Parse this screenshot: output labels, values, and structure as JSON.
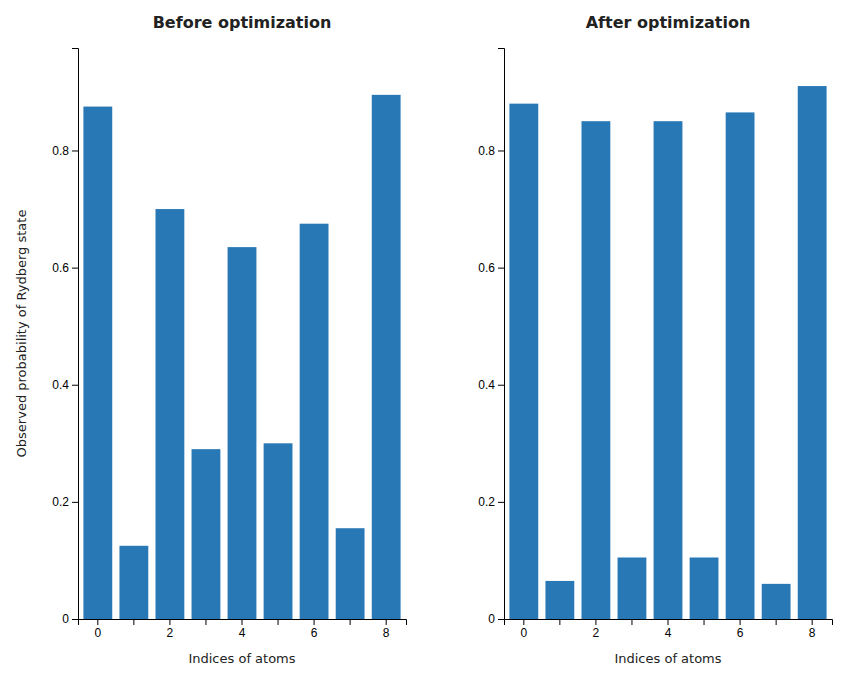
{
  "chart_data": [
    {
      "type": "bar",
      "title": "Before optimization",
      "xlabel": "Indices of atoms",
      "ylabel": "Observed probability of Rydberg state",
      "categories": [
        "0",
        null,
        "2",
        null,
        "4",
        null,
        "6",
        null,
        "8"
      ],
      "values": [
        0.875,
        0.125,
        0.7,
        0.29,
        0.635,
        0.3,
        0.675,
        0.155,
        0.895
      ],
      "color": "#2878b5",
      "ylim": [
        0,
        0.975
      ],
      "yticks": [
        0,
        0.2,
        0.4,
        0.6,
        0.8
      ],
      "grid": false
    },
    {
      "type": "bar",
      "title": "After optimization",
      "xlabel": "Indices of atoms",
      "categories": [
        "0",
        null,
        "2",
        null,
        "4",
        null,
        "6",
        null,
        "8"
      ],
      "values": [
        0.88,
        0.065,
        0.85,
        0.105,
        0.85,
        0.105,
        0.865,
        0.06,
        0.91
      ],
      "color": "#2878b5",
      "ylim": [
        0,
        0.975
      ],
      "yticks": [
        0,
        0.2,
        0.4,
        0.6,
        0.8
      ],
      "grid": false
    }
  ]
}
